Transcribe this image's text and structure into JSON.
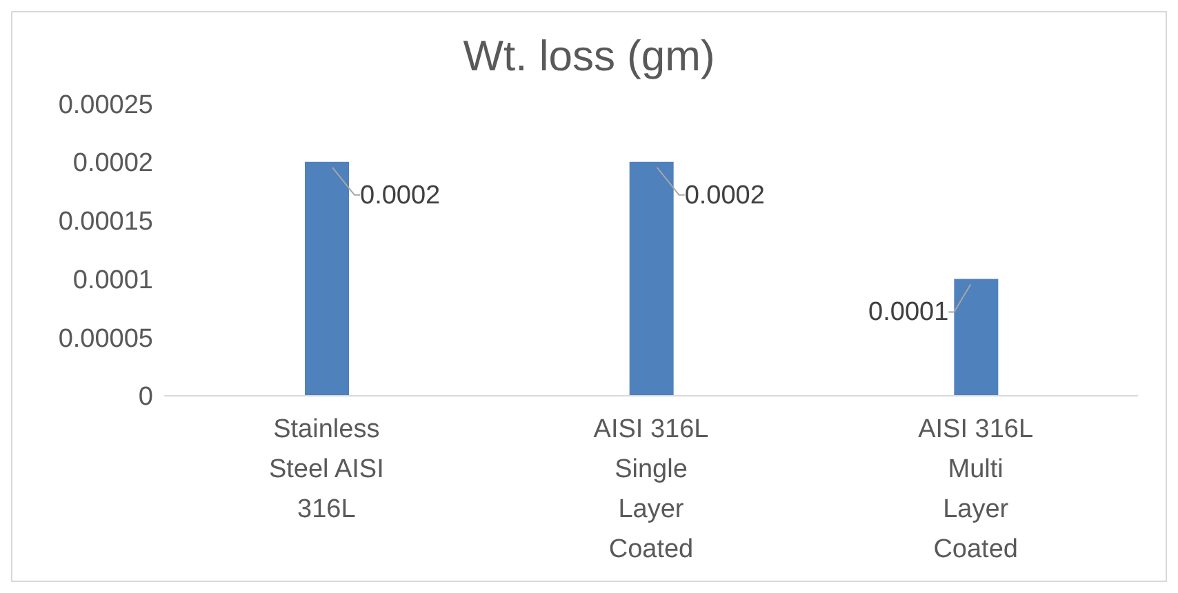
{
  "chart_data": {
    "type": "bar",
    "title": "Wt. loss (gm)",
    "categories": [
      "Stainless Steel AISI 316L",
      "AISI 316L Single Layer Coated",
      "AISI 316L Multi Layer Coated"
    ],
    "values": [
      0.0002,
      0.0002,
      0.0001
    ],
    "color": "#4f81bd",
    "ylim": [
      0,
      0.00025
    ],
    "yticks": [
      0,
      {
        "value": 5e-05,
        "label": "0.00005"
      },
      0.0001,
      0.00015,
      0.0002,
      0.00025
    ],
    "grid": false,
    "legend": false,
    "data_labels": true
  }
}
